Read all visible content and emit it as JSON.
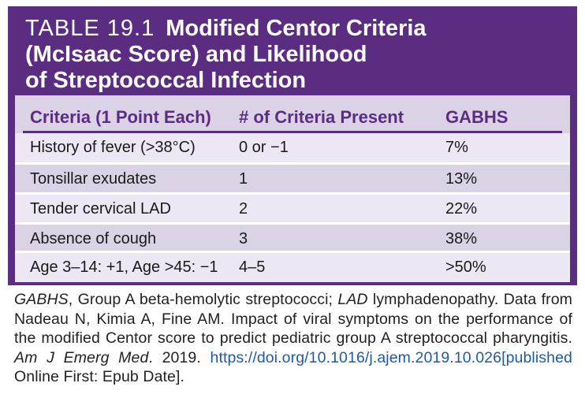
{
  "table": {
    "label": "TABLE 19.1",
    "title_line1": "Modified Centor Criteria",
    "title_line2": "(McIsaac Score) and Likelihood",
    "title_line3": "of Streptococcal Infection",
    "headers": [
      "Criteria (1 Point Each)",
      "# of Criteria Present",
      "GABHS"
    ],
    "rows": [
      [
        "History of fever (>38°C)",
        "0 or −1",
        "7%"
      ],
      [
        "Tonsillar exudates",
        "1",
        "13%"
      ],
      [
        "Tender cervical LAD",
        "2",
        "22%"
      ],
      [
        "Absence of cough",
        "3",
        "38%"
      ],
      [
        "Age 3–14: +1, Age >45: −1",
        "4–5",
        ">50%"
      ]
    ]
  },
  "caption": {
    "abbr1": "GABHS",
    "def1": ", Group A beta-hemolytic streptococci; ",
    "abbr2": "LAD",
    "def2": " lymphadenopathy. Data from Nadeau N, Kimia A, Fine AM. Impact of viral symptoms on the performance of the modified Centor score to predict pediatric group A streptococcal pharyngitis. ",
    "journal": "Am J Emerg Med",
    "year": ". 2019. ",
    "doi": "https://doi.org/10.1016/j.ajem.2019.10.026",
    "published": "[published",
    "tail": " Online First: Epub Date]."
  }
}
